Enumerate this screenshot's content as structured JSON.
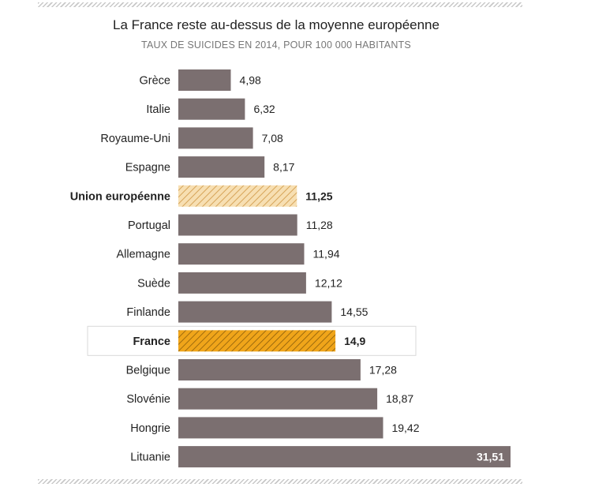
{
  "chart_data": {
    "type": "bar",
    "orientation": "horizontal",
    "title": "La France reste au-dessus de la moyenne européenne",
    "subtitle": "TAUX DE SUICIDES EN 2014, POUR 100 000 HABITANTS",
    "categories": [
      "Grèce",
      "Italie",
      "Royaume-Uni",
      "Espagne",
      "Union européenne",
      "Portugal",
      "Allemagne",
      "Suède",
      "Finlande",
      "France",
      "Belgique",
      "Slovénie",
      "Hongrie",
      "Lituanie"
    ],
    "values": [
      4.98,
      6.32,
      7.08,
      8.17,
      11.25,
      11.28,
      11.94,
      12.12,
      14.55,
      14.9,
      17.28,
      18.87,
      19.42,
      31.51
    ],
    "value_labels": [
      "4,98",
      "6,32",
      "7,08",
      "8,17",
      "11,25",
      "11,28",
      "11,94",
      "12,12",
      "14,55",
      "14,9",
      "17,28",
      "18,87",
      "19,42",
      "31,51"
    ],
    "highlight": {
      "Union européenne": "hatched-light",
      "France": "hatched-orange"
    },
    "xlim": [
      0,
      31.51
    ],
    "grid": false,
    "legend": "none",
    "colors": {
      "bar": "#7b6f70",
      "eu_fill": "#f7dfb2",
      "eu_hatch": "#d7a55a",
      "france_fill": "#f0a51a",
      "france_hatch": "#8a5d0a",
      "france_box": "#d9d9d9"
    }
  }
}
